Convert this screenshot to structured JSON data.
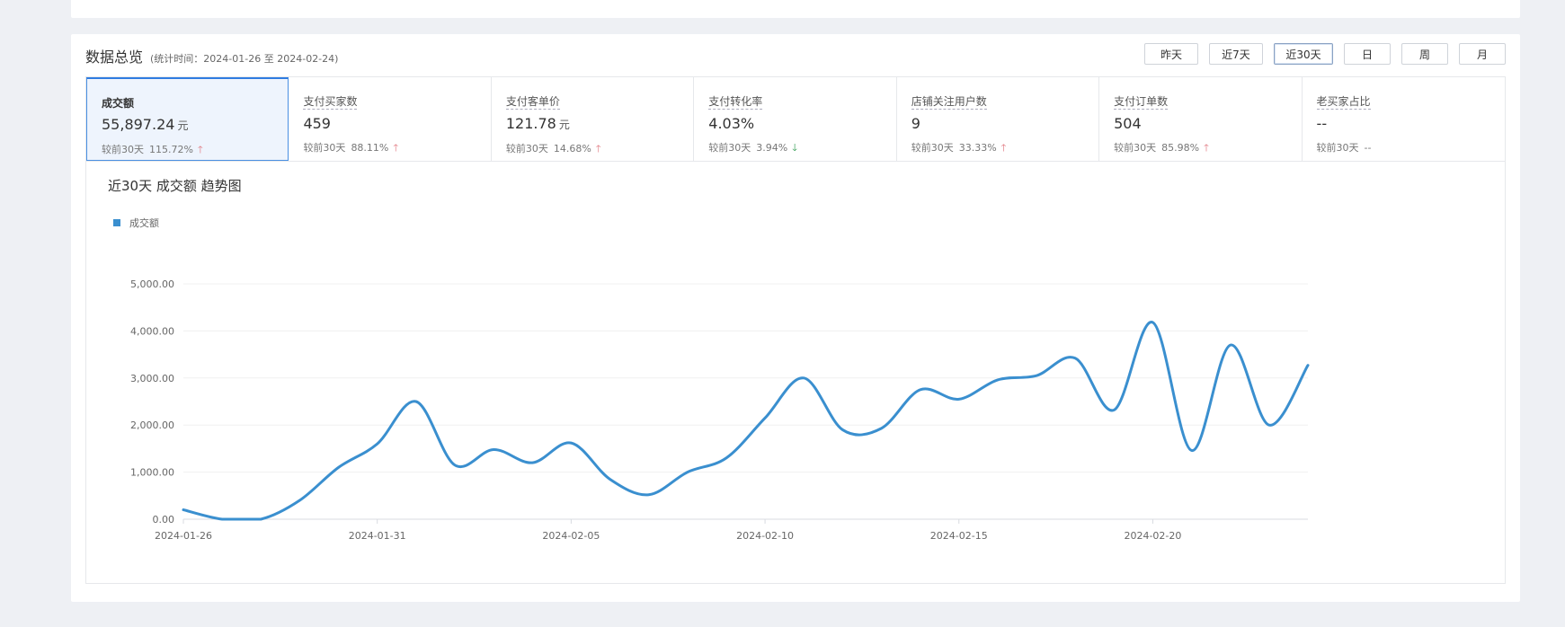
{
  "overview": {
    "title": "数据总览",
    "range": "(统计时间：2024-01-26 至 2024-02-24)",
    "buttons": [
      {
        "label": "昨天"
      },
      {
        "label": "近7天"
      },
      {
        "label": "近30天",
        "active": true
      },
      {
        "label": "日"
      },
      {
        "label": "周"
      },
      {
        "label": "月"
      }
    ]
  },
  "metrics": [
    {
      "label": "成交额",
      "value": "55,897.24",
      "unit": "元",
      "compare": "较前30天",
      "change": "115.72%",
      "trend": "up",
      "selected": true
    },
    {
      "label": "支付买家数",
      "value": "459",
      "unit": "",
      "compare": "较前30天",
      "change": "88.11%",
      "trend": "up"
    },
    {
      "label": "支付客单价",
      "value": "121.78",
      "unit": "元",
      "compare": "较前30天",
      "change": "14.68%",
      "trend": "up"
    },
    {
      "label": "支付转化率",
      "value": "4.03%",
      "unit": "",
      "compare": "较前30天",
      "change": "3.94%",
      "trend": "down"
    },
    {
      "label": "店铺关注用户数",
      "value": "9",
      "unit": "",
      "compare": "较前30天",
      "change": "33.33%",
      "trend": "up"
    },
    {
      "label": "支付订单数",
      "value": "504",
      "unit": "",
      "compare": "较前30天",
      "change": "85.98%",
      "trend": "up"
    },
    {
      "label": "老买家占比",
      "value": "--",
      "unit": "",
      "compare": "较前30天",
      "change": "--",
      "trend": "none"
    }
  ],
  "colors": {
    "line": "#3a8fcf",
    "up": "#e0767e",
    "down": "#2c9a4d",
    "accent": "#2f7ce0"
  },
  "chart_data": {
    "type": "line",
    "title": "近30天 成交额 趋势图",
    "legend": [
      "成交额"
    ],
    "x": [
      "2024-01-26",
      "2024-01-27",
      "2024-01-28",
      "2024-01-29",
      "2024-01-30",
      "2024-01-31",
      "2024-02-01",
      "2024-02-02",
      "2024-02-03",
      "2024-02-04",
      "2024-02-05",
      "2024-02-06",
      "2024-02-07",
      "2024-02-08",
      "2024-02-09",
      "2024-02-10",
      "2024-02-11",
      "2024-02-12",
      "2024-02-13",
      "2024-02-14",
      "2024-02-15",
      "2024-02-16",
      "2024-02-17",
      "2024-02-18",
      "2024-02-19",
      "2024-02-20",
      "2024-02-21",
      "2024-02-22",
      "2024-02-23",
      "2024-02-24"
    ],
    "series": [
      {
        "name": "成交额",
        "values": [
          200,
          0,
          0,
          400,
          1100,
          1600,
          2500,
          1150,
          1480,
          1200,
          1620,
          850,
          520,
          1000,
          1300,
          2150,
          3000,
          1900,
          1930,
          2750,
          2550,
          2960,
          3050,
          3420,
          2320,
          4180,
          1460,
          3700,
          2000,
          3270
        ]
      }
    ],
    "xticks": [
      "2024-01-26",
      "2024-01-31",
      "2024-02-05",
      "2024-02-10",
      "2024-02-15",
      "2024-02-20"
    ],
    "yticks": [
      "0.00",
      "1,000.00",
      "2,000.00",
      "3,000.00",
      "4,000.00",
      "5,000.00"
    ],
    "ylim": [
      0,
      5000
    ],
    "grid": true,
    "legend_position": "top-left"
  }
}
